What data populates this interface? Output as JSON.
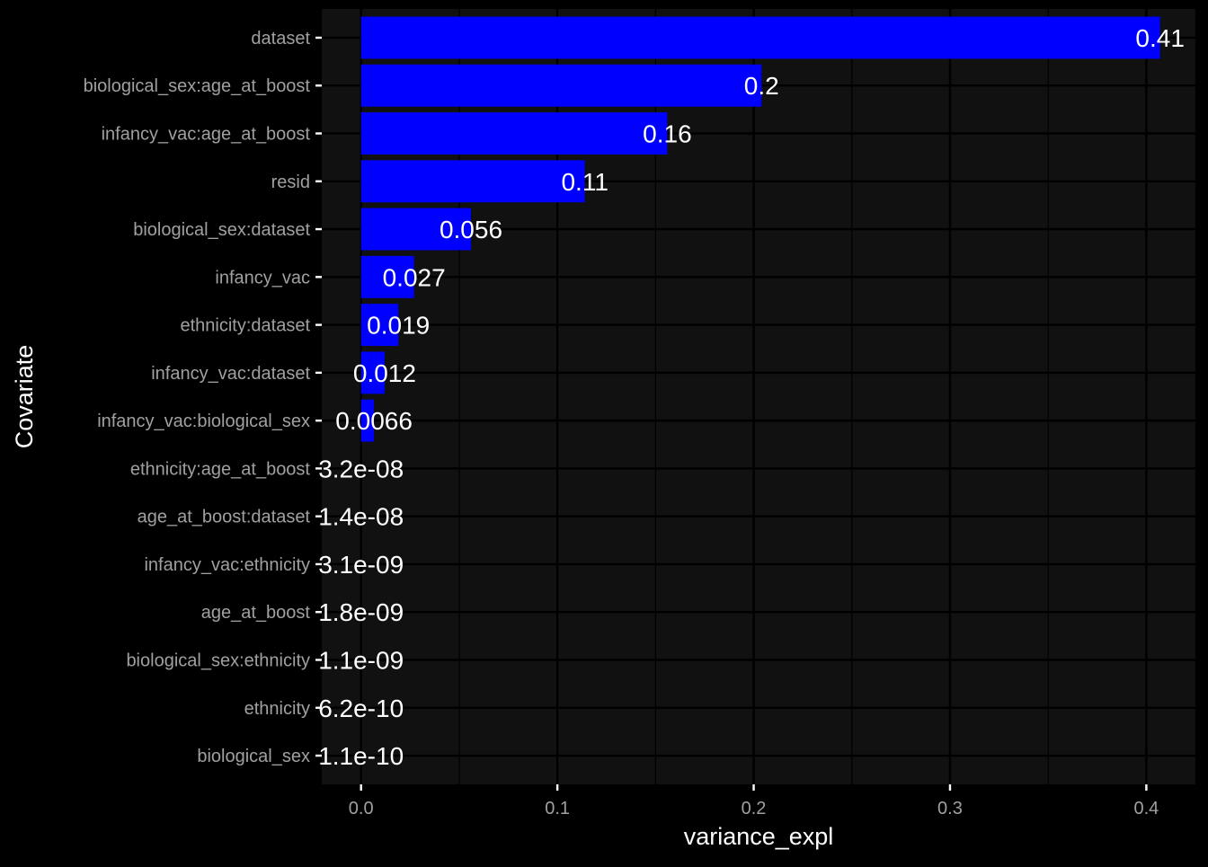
{
  "chart_data": {
    "type": "bar",
    "orientation": "horizontal",
    "title": "",
    "xlabel": "variance_expl",
    "ylabel": "Covariate",
    "xlim": [
      -0.02,
      0.425
    ],
    "x_ticks": [
      0.0,
      0.1,
      0.2,
      0.3,
      0.4
    ],
    "x_tick_labels": [
      "0.0",
      "0.1",
      "0.2",
      "0.3",
      "0.4"
    ],
    "grid": true,
    "legend": "none",
    "categories": [
      "dataset",
      "biological_sex:age_at_boost",
      "infancy_vac:age_at_boost",
      "resid",
      "biological_sex:dataset",
      "infancy_vac",
      "ethnicity:dataset",
      "infancy_vac:dataset",
      "infancy_vac:biological_sex",
      "ethnicity:age_at_boost",
      "age_at_boost:dataset",
      "infancy_vac:ethnicity",
      "age_at_boost",
      "biological_sex:ethnicity",
      "ethnicity",
      "biological_sex"
    ],
    "values": [
      0.407,
      0.204,
      0.156,
      0.114,
      0.056,
      0.027,
      0.019,
      0.012,
      0.0066,
      3.2e-08,
      1.4e-08,
      3.1e-09,
      1.8e-09,
      1.1e-09,
      6.2e-10,
      1.1e-10
    ],
    "value_labels": [
      "0.41",
      "0.2",
      "0.16",
      "0.11",
      "0.056",
      "0.027",
      "0.019",
      "0.012",
      "0.0066",
      "3.2e-08",
      "1.4e-08",
      "3.1e-09",
      "1.8e-09",
      "1.1e-09",
      "6.2e-10",
      "1.1e-10"
    ],
    "colors": {
      "background": "#000000",
      "panel": "#111111",
      "grid": "#000000",
      "bar": "#0000FF",
      "axis_text": "#A0A0A0",
      "axis_title": "#FFFFFF",
      "value_label": "#FFFFFF"
    }
  }
}
